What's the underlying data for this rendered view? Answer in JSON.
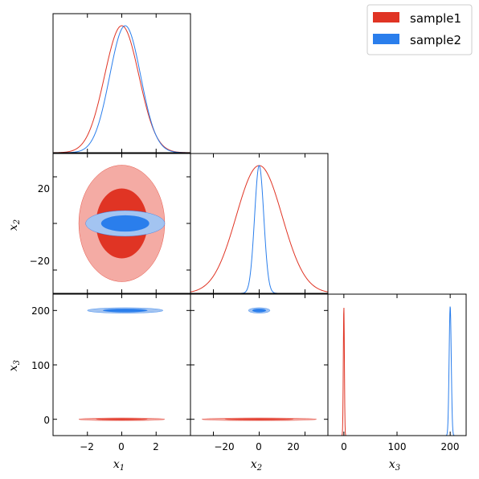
{
  "chart_data": {
    "type": "triangle-plot",
    "title": "",
    "parameters": [
      {
        "symbol": "x",
        "subscript": "1",
        "range": [
          -4,
          4
        ],
        "ticks": [
          -2,
          0,
          2
        ],
        "tick_labels": [
          "−2",
          "0",
          "2"
        ]
      },
      {
        "symbol": "x",
        "subscript": "2",
        "range": [
          -30,
          30
        ],
        "ticks": [
          -20,
          0,
          20
        ],
        "tick_labels": [
          "−20",
          "0",
          "20"
        ]
      },
      {
        "symbol": "x",
        "subscript": "3",
        "range": [
          -30,
          230
        ],
        "ticks": [
          0,
          100,
          200
        ],
        "tick_labels": [
          "0",
          "100",
          "200"
        ]
      }
    ],
    "legend": {
      "placement": "top-right"
    },
    "series": [
      {
        "name": "sample1",
        "color": "#e03424",
        "outer_color": "#f4aba4",
        "mean": [
          0,
          0,
          0
        ],
        "std": [
          1.0,
          10.0,
          1.0
        ],
        "contour_68": {
          "x1x2": [
            1.5,
            15
          ],
          "x1x3": [
            1.5,
            1.5
          ],
          "x2x3": [
            15,
            1.5
          ]
        },
        "contour_95": {
          "x1x2": [
            2.5,
            25
          ],
          "x1x3": [
            2.5,
            2.5
          ],
          "x2x3": [
            25,
            2.5
          ]
        }
      },
      {
        "name": "sample2",
        "color": "#2a7eec",
        "outer_color": "#a3c4f1",
        "mean": [
          0.2,
          0,
          200
        ],
        "std": [
          0.9,
          2.0,
          2.0
        ],
        "contour_68": {
          "x1x2": [
            1.4,
            3.5
          ],
          "x1x3": [
            1.3,
            3.3
          ],
          "x2x3": [
            3.0,
            3.3
          ]
        },
        "contour_95": {
          "x1x2": [
            2.3,
            5.5
          ],
          "x1x3": [
            2.2,
            5.0
          ],
          "x2x3": [
            4.7,
            5.0
          ]
        }
      }
    ]
  }
}
